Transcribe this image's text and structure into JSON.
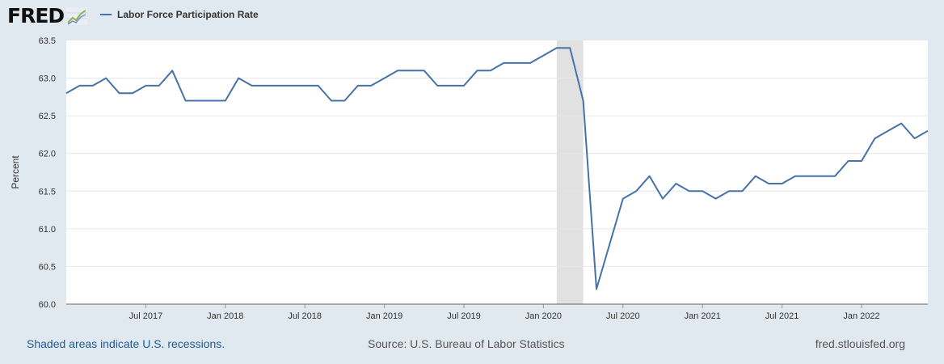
{
  "logo": {
    "text": "FRED",
    "icon": "fred-trend-line-icon"
  },
  "legend": {
    "label": "Labor Force Participation Rate",
    "color": "#4572a7"
  },
  "footer": {
    "recession_note": "Shaded areas indicate U.S. recessions.",
    "source": "Source: U.S. Bureau of Labor Statistics",
    "site": "fred.stlouisfed.org"
  },
  "chart_data": {
    "type": "line",
    "title": "",
    "xlabel": "",
    "ylabel": "Percent",
    "ylim": [
      60.0,
      63.5
    ],
    "yticks": [
      "60.0",
      "60.5",
      "61.0",
      "61.5",
      "62.0",
      "62.5",
      "63.0",
      "63.5"
    ],
    "xlim": [
      "2017-01",
      "2022-06"
    ],
    "xticks": [
      {
        "date": "2017-07",
        "label": "Jul 2017"
      },
      {
        "date": "2018-01",
        "label": "Jan 2018"
      },
      {
        "date": "2018-07",
        "label": "Jul 2018"
      },
      {
        "date": "2019-01",
        "label": "Jan 2019"
      },
      {
        "date": "2019-07",
        "label": "Jul 2019"
      },
      {
        "date": "2020-01",
        "label": "Jan 2020"
      },
      {
        "date": "2020-07",
        "label": "Jul 2020"
      },
      {
        "date": "2021-01",
        "label": "Jan 2021"
      },
      {
        "date": "2021-07",
        "label": "Jul 2021"
      },
      {
        "date": "2022-01",
        "label": "Jan 2022"
      }
    ],
    "grid": true,
    "recessions": [
      {
        "start": "2020-02",
        "end": "2020-04"
      }
    ],
    "series": [
      {
        "name": "Labor Force Participation Rate",
        "color": "#4572a7",
        "x": [
          "2017-01",
          "2017-02",
          "2017-03",
          "2017-04",
          "2017-05",
          "2017-06",
          "2017-07",
          "2017-08",
          "2017-09",
          "2017-10",
          "2017-11",
          "2017-12",
          "2018-01",
          "2018-02",
          "2018-03",
          "2018-04",
          "2018-05",
          "2018-06",
          "2018-07",
          "2018-08",
          "2018-09",
          "2018-10",
          "2018-11",
          "2018-12",
          "2019-01",
          "2019-02",
          "2019-03",
          "2019-04",
          "2019-05",
          "2019-06",
          "2019-07",
          "2019-08",
          "2019-09",
          "2019-10",
          "2019-11",
          "2019-12",
          "2020-01",
          "2020-02",
          "2020-03",
          "2020-04",
          "2020-05",
          "2020-06",
          "2020-07",
          "2020-08",
          "2020-09",
          "2020-10",
          "2020-11",
          "2020-12",
          "2021-01",
          "2021-02",
          "2021-03",
          "2021-04",
          "2021-05",
          "2021-06",
          "2021-07",
          "2021-08",
          "2021-09",
          "2021-10",
          "2021-11",
          "2021-12",
          "2022-01",
          "2022-02",
          "2022-03",
          "2022-04",
          "2022-05",
          "2022-06"
        ],
        "values": [
          62.8,
          62.9,
          62.9,
          63.0,
          62.8,
          62.8,
          62.9,
          62.9,
          63.1,
          62.7,
          62.7,
          62.7,
          62.7,
          63.0,
          62.9,
          62.9,
          62.9,
          62.9,
          62.9,
          62.9,
          62.7,
          62.7,
          62.9,
          62.9,
          63.0,
          63.1,
          63.1,
          63.1,
          62.9,
          62.9,
          62.9,
          63.1,
          63.1,
          63.2,
          63.2,
          63.2,
          63.3,
          63.4,
          63.4,
          62.7,
          60.2,
          60.8,
          61.4,
          61.5,
          61.7,
          61.4,
          61.6,
          61.5,
          61.5,
          61.4,
          61.5,
          61.5,
          61.7,
          61.6,
          61.6,
          61.7,
          61.7,
          61.7,
          61.7,
          61.9,
          61.9,
          62.2,
          62.3,
          62.4,
          62.2,
          62.3
        ]
      }
    ]
  }
}
